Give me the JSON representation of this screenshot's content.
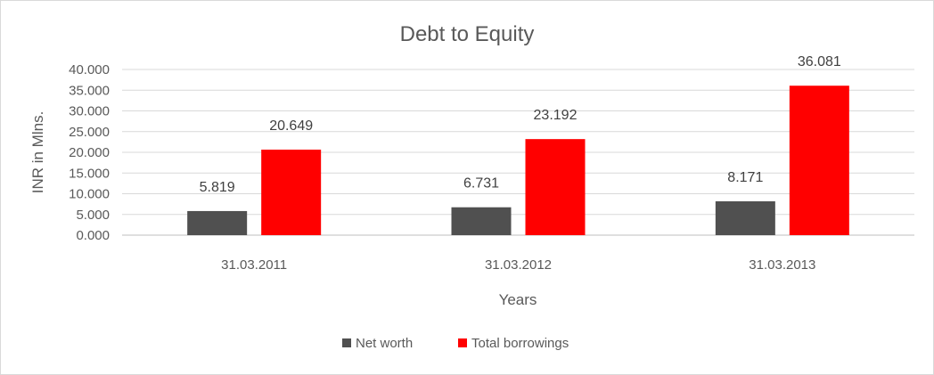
{
  "chart_data": {
    "type": "bar",
    "title": "Debt to Equity",
    "xlabel": "Years",
    "ylabel": "INR in Mlns.",
    "categories": [
      "31.03.2011",
      "31.03.2012",
      "31.03.2013"
    ],
    "series": [
      {
        "name": "Net worth",
        "values": [
          5.819,
          6.731,
          8.171
        ],
        "color": "#505050",
        "labels": [
          "5.819",
          "6.731",
          "8.171"
        ]
      },
      {
        "name": "Total borrowings",
        "values": [
          20.649,
          23.192,
          36.081
        ],
        "color": "#ff0000",
        "labels": [
          "20.649",
          "23.192",
          "36.081"
        ]
      }
    ],
    "ylim": [
      0,
      40
    ],
    "yticks": [
      0,
      5,
      10,
      15,
      20,
      25,
      30,
      35,
      40
    ],
    "ytick_labels": [
      "0.000",
      "5.000",
      "10.000",
      "15.000",
      "20.000",
      "25.000",
      "30.000",
      "35.000",
      "40.000"
    ],
    "grid": true,
    "legend_position": "bottom",
    "gridline_color": "#d9d9d9",
    "axis_color": "#bfbfbf"
  }
}
